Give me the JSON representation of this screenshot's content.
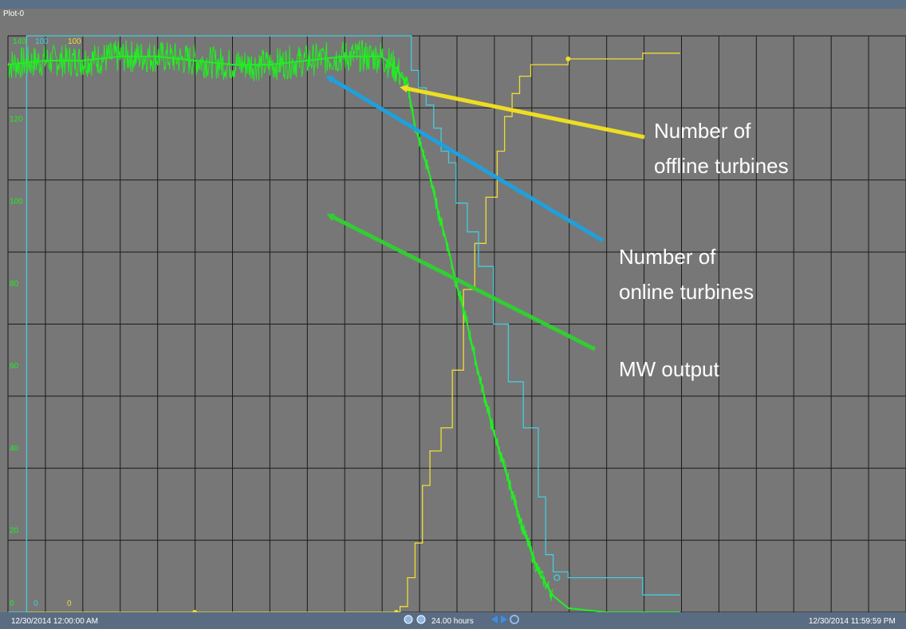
{
  "window": {
    "title": "Plot-0"
  },
  "header_scale": {
    "green_max": "140",
    "cyan_max": "100",
    "yellow_max": "100"
  },
  "footer": {
    "start_time": "12/30/2014 12:00:00 AM",
    "end_time": "12/30/2014 11:59:59 PM",
    "duration": "24.00 hours",
    "green_min": "0",
    "cyan_min": "0",
    "yellow_min": "0"
  },
  "colors": {
    "plot_bg": "#777777",
    "grid": "#1a1a1a",
    "mw": "#22ee22",
    "online": "#44ccdd",
    "offline": "#eedd33",
    "arrow_blue": "#1fa0dc",
    "arrow_green": "#33cc33",
    "arrow_yellow": "#eedd22"
  },
  "chart_data": {
    "type": "line",
    "x_unit": "hours",
    "xlim": [
      0,
      24
    ],
    "ylim": [
      0,
      140
    ],
    "yticks": [
      20,
      40,
      60,
      80,
      100,
      120
    ],
    "grid": true,
    "series": [
      {
        "name": "MW output",
        "axis": "left",
        "x": [
          0,
          1,
          2,
          3,
          4,
          5,
          6,
          7,
          8,
          9,
          10,
          10.4,
          10.7,
          10.9,
          11.1,
          11.3,
          11.5,
          11.8,
          12.0,
          12.3,
          12.6,
          13.0,
          13.4,
          13.8,
          14.2,
          14.6,
          15.0,
          16.0,
          18.0
        ],
        "y": [
          133,
          134,
          134,
          135,
          135,
          134,
          133,
          133,
          134,
          135,
          135,
          132,
          128,
          118,
          112,
          106,
          98,
          88,
          80,
          70,
          58,
          44,
          32,
          20,
          10,
          4,
          1,
          0,
          0
        ]
      },
      {
        "name": "Number of online turbines",
        "axis": "right",
        "x": [
          0,
          0.5,
          4.9,
          5.0,
          10.7,
          10.8,
          11.0,
          11.2,
          11.4,
          11.6,
          11.8,
          12.0,
          12.3,
          12.6,
          13.0,
          13.4,
          13.8,
          14.2,
          14.4,
          14.6,
          15.0,
          16.0,
          17.0,
          18.0
        ],
        "y": [
          0,
          100,
          100,
          100,
          100,
          94,
          91,
          88,
          84,
          80,
          78,
          71,
          66,
          60,
          50,
          40,
          32,
          20,
          10,
          7,
          6,
          6,
          3,
          3
        ]
      },
      {
        "name": "Number of offline turbines",
        "axis": "right",
        "x": [
          0,
          10.4,
          10.5,
          10.7,
          10.9,
          11.1,
          11.3,
          11.6,
          11.9,
          12.2,
          12.5,
          12.8,
          13.1,
          13.3,
          13.5,
          13.7,
          14.0,
          14.5,
          15.0,
          16.0,
          17.0,
          18.0
        ],
        "y": [
          0,
          0,
          1,
          6,
          12,
          22,
          28,
          32,
          42,
          56,
          64,
          72,
          80,
          86,
          90,
          93,
          95,
          95,
          96,
          96,
          97,
          97
        ]
      }
    ],
    "annotations": [
      {
        "series": "Number of offline turbines",
        "text_line1": "Number of",
        "text_line2": "offline turbines"
      },
      {
        "series": "Number of online turbines",
        "text_line1": "Number of",
        "text_line2": "online turbines"
      },
      {
        "series": "MW output",
        "text": "MW output"
      }
    ]
  }
}
